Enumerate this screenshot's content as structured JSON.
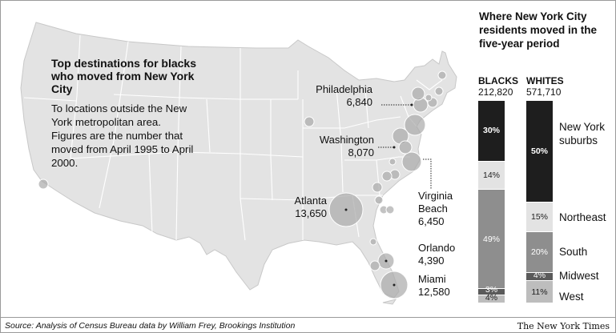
{
  "map": {
    "title": "Top destinations for blacks who moved from New York City",
    "description": "To locations outside the New York metropolitan area. Figures are the number that moved from April 1995 to April 2000.",
    "destinations": [
      {
        "city": "Philadelphia",
        "count": "6,840"
      },
      {
        "city": "Washington",
        "count": "8,070"
      },
      {
        "city": "Virginia Beach",
        "count": "6,450"
      },
      {
        "city": "Atlanta",
        "count": "13,650"
      },
      {
        "city": "Orlando",
        "count": "4,390"
      },
      {
        "city": "Miami",
        "count": "12,580"
      }
    ]
  },
  "chart_data": {
    "type": "bar",
    "title": "Where New York City residents moved in the five-year period",
    "series": [
      {
        "name": "BLACKS",
        "total": "212,820",
        "values": [
          30,
          14,
          49,
          3,
          4
        ]
      },
      {
        "name": "WHITES",
        "total": "571,710",
        "values": [
          50,
          15,
          20,
          4,
          11
        ]
      }
    ],
    "categories": [
      "New York suburbs",
      "Northeast",
      "South",
      "Midwest",
      "West"
    ],
    "colors": [
      "#1e1e1e",
      "#e3e3e3",
      "#8e8e8e",
      "#5a5a5a",
      "#bdbdbd"
    ]
  },
  "footer": {
    "source": "Source: Analysis of Census Bureau data by William Frey, Brookings Institution",
    "credit": "The New York Times"
  }
}
